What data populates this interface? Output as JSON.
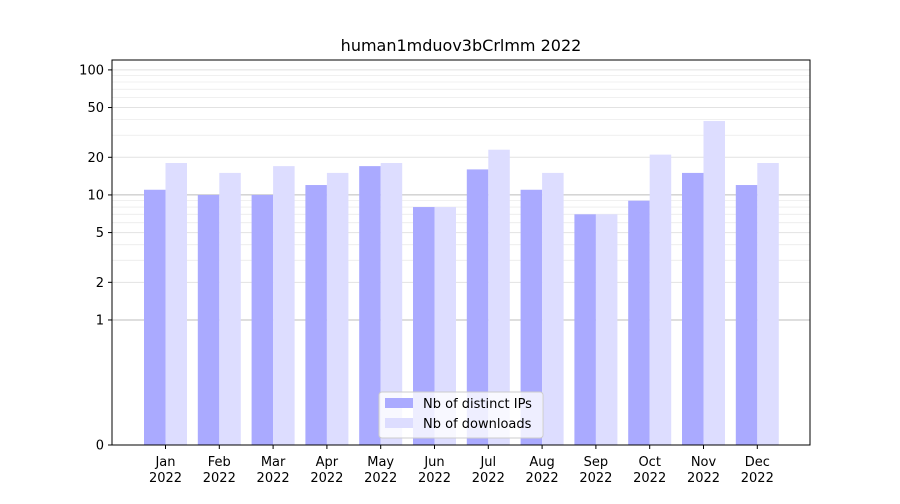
{
  "chart_data": {
    "type": "bar",
    "title": "human1mduov3bCrlmm 2022",
    "xlabel": "",
    "ylabel": "",
    "scale": "symlog",
    "ylim": [
      0,
      120
    ],
    "categories": [
      "Jan\n2022",
      "Feb\n2022",
      "Mar\n2022",
      "Apr\n2022",
      "May\n2022",
      "Jun\n2022",
      "Jul\n2022",
      "Aug\n2022",
      "Sep\n2022",
      "Oct\n2022",
      "Nov\n2022",
      "Dec\n2022"
    ],
    "yticks": [
      {
        "value": 0,
        "label": "0"
      },
      {
        "value": 1,
        "label": "1"
      },
      {
        "value": 2,
        "label": "2"
      },
      {
        "value": 5,
        "label": "5"
      },
      {
        "value": 10,
        "label": "10"
      },
      {
        "value": 20,
        "label": "20"
      },
      {
        "value": 50,
        "label": "50"
      },
      {
        "value": 100,
        "label": "100"
      }
    ],
    "series": [
      {
        "name": "Nb of distinct IPs",
        "color": "#aaaaff",
        "values": [
          11,
          10,
          10,
          12,
          17,
          8,
          16,
          11,
          7,
          9,
          15,
          12
        ]
      },
      {
        "name": "Nb of downloads",
        "color": "#ddddff",
        "values": [
          18,
          15,
          17,
          15,
          18,
          8,
          23,
          15,
          7,
          21,
          39,
          18
        ]
      }
    ],
    "grid": true,
    "legend_position": "lower-center"
  }
}
